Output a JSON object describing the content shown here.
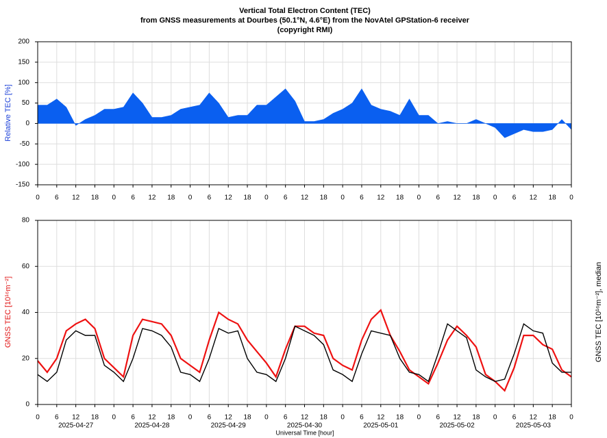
{
  "chart_data": [
    {
      "type": "area",
      "title": [
        "Vertical Total Electron Content (TEC)",
        "from GNSS measurements at Dourbes (50.1°N, 4.6°E) from the NovAtel GPStation-6 receiver",
        "(copyright RMI)"
      ],
      "ylabel": "Relative TEC [%]",
      "color": "#0a5ff0",
      "x": [
        0,
        3,
        6,
        9,
        12,
        15,
        18,
        21,
        24,
        27,
        30,
        33,
        36,
        39,
        42,
        45,
        48,
        51,
        54,
        57,
        60,
        63,
        66,
        69,
        72,
        75,
        78,
        81,
        84,
        87,
        90,
        93,
        96,
        99,
        102,
        105,
        108,
        111,
        114,
        117,
        120,
        123,
        126,
        129,
        132,
        135,
        138,
        141,
        144,
        147,
        150,
        153,
        156,
        159,
        162,
        165,
        168
      ],
      "values": [
        45,
        45,
        60,
        40,
        -5,
        10,
        20,
        35,
        35,
        40,
        75,
        50,
        15,
        15,
        20,
        35,
        40,
        45,
        75,
        50,
        15,
        20,
        20,
        45,
        45,
        65,
        85,
        55,
        5,
        5,
        10,
        25,
        35,
        50,
        85,
        45,
        35,
        30,
        20,
        60,
        20,
        20,
        0,
        5,
        0,
        0,
        10,
        0,
        -10,
        -35,
        -25,
        -15,
        -20,
        -20,
        -15,
        10,
        -15
      ],
      "xlim": [
        0,
        168
      ],
      "xticks": [
        0,
        6,
        12,
        18,
        {
          "value": 24,
          "label": "0"
        },
        {
          "value": 30,
          "label": "6"
        },
        {
          "value": 36,
          "label": "12"
        },
        {
          "value": 42,
          "label": "18"
        },
        {
          "value": 48,
          "label": "0"
        },
        {
          "value": 54,
          "label": "6"
        },
        {
          "value": 60,
          "label": "12"
        },
        {
          "value": 66,
          "label": "18"
        },
        {
          "value": 72,
          "label": "0"
        },
        {
          "value": 78,
          "label": "6"
        },
        {
          "value": 84,
          "label": "12"
        },
        {
          "value": 90,
          "label": "18"
        },
        {
          "value": 96,
          "label": "0"
        },
        {
          "value": 102,
          "label": "6"
        },
        {
          "value": 108,
          "label": "12"
        },
        {
          "value": 114,
          "label": "18"
        },
        {
          "value": 120,
          "label": "0"
        },
        {
          "value": 126,
          "label": "6"
        },
        {
          "value": 132,
          "label": "12"
        },
        {
          "value": 138,
          "label": "18"
        },
        {
          "value": 144,
          "label": "0"
        },
        {
          "value": 150,
          "label": "6"
        },
        {
          "value": 156,
          "label": "12"
        },
        {
          "value": 162,
          "label": "18"
        },
        {
          "value": 168,
          "label": "0"
        }
      ],
      "ylim": [
        -150,
        200
      ],
      "yticks": [
        -150,
        -100,
        -50,
        0,
        50,
        100,
        150,
        200
      ],
      "grid": true
    },
    {
      "type": "line",
      "xlabel": "Universal Time [hour]",
      "day_labels": [
        "2025-04-27",
        "2025-04-28",
        "2025-04-29",
        "2025-04-30",
        "2025-05-01",
        "2025-05-02",
        "2025-05-03"
      ],
      "x": [
        0,
        3,
        6,
        9,
        12,
        15,
        18,
        21,
        24,
        27,
        30,
        33,
        36,
        39,
        42,
        45,
        48,
        51,
        54,
        57,
        60,
        63,
        66,
        69,
        72,
        75,
        78,
        81,
        84,
        87,
        90,
        93,
        96,
        99,
        102,
        105,
        108,
        111,
        114,
        117,
        120,
        123,
        126,
        129,
        132,
        135,
        138,
        141,
        144,
        147,
        150,
        153,
        156,
        159,
        162,
        165,
        168
      ],
      "series": [
        {
          "name": "GNSS TEC [10¹⁶m⁻²]",
          "color": "#ee1111",
          "values": [
            19,
            14,
            20,
            32,
            35,
            37,
            33,
            20,
            16,
            12,
            30,
            37,
            36,
            35,
            30,
            20,
            17,
            14,
            28,
            40,
            37,
            35,
            28,
            23,
            18,
            12,
            24,
            34,
            34,
            31,
            30,
            20,
            17,
            15,
            28,
            37,
            41,
            30,
            23,
            15,
            12,
            9,
            18,
            28,
            34,
            30,
            25,
            13,
            10,
            6,
            16,
            30,
            30,
            26,
            24,
            15,
            12
          ]
        },
        {
          "name": "GNSS TEC [10¹⁶m⁻²], median",
          "color": "#000000",
          "axis": "y2",
          "values": [
            13,
            10,
            14,
            28,
            32,
            30,
            30,
            17,
            14,
            10,
            20,
            33,
            32,
            30,
            25,
            14,
            13,
            10,
            20,
            33,
            31,
            32,
            20,
            14,
            13,
            10,
            20,
            34,
            32,
            30,
            26,
            15,
            13,
            10,
            22,
            32,
            31,
            30,
            20,
            14,
            13,
            10,
            22,
            35,
            32,
            29,
            15,
            12,
            10,
            11,
            22,
            35,
            32,
            31,
            18,
            14,
            14
          ]
        }
      ],
      "xlim": [
        0,
        168
      ],
      "xticks": [
        0,
        6,
        12,
        18,
        {
          "value": 24,
          "label": "0"
        },
        {
          "value": 30,
          "label": "6"
        },
        {
          "value": 36,
          "label": "12"
        },
        {
          "value": 42,
          "label": "18"
        },
        {
          "value": 48,
          "label": "0"
        },
        {
          "value": 54,
          "label": "6"
        },
        {
          "value": 60,
          "label": "12"
        },
        {
          "value": 66,
          "label": "18"
        },
        {
          "value": 72,
          "label": "0"
        },
        {
          "value": 78,
          "label": "6"
        },
        {
          "value": 84,
          "label": "12"
        },
        {
          "value": 90,
          "label": "18"
        },
        {
          "value": 96,
          "label": "0"
        },
        {
          "value": 102,
          "label": "6"
        },
        {
          "value": 108,
          "label": "12"
        },
        {
          "value": 114,
          "label": "18"
        },
        {
          "value": 120,
          "label": "0"
        },
        {
          "value": 126,
          "label": "6"
        },
        {
          "value": 132,
          "label": "12"
        },
        {
          "value": 138,
          "label": "18"
        },
        {
          "value": 144,
          "label": "0"
        },
        {
          "value": 150,
          "label": "6"
        },
        {
          "value": 156,
          "label": "12"
        },
        {
          "value": 162,
          "label": "18"
        },
        {
          "value": 168,
          "label": "0"
        }
      ],
      "ylim": [
        0,
        80
      ],
      "yticks": [
        0,
        20,
        40,
        60,
        80
      ],
      "y2lim": [
        0,
        80
      ],
      "grid": true
    }
  ]
}
